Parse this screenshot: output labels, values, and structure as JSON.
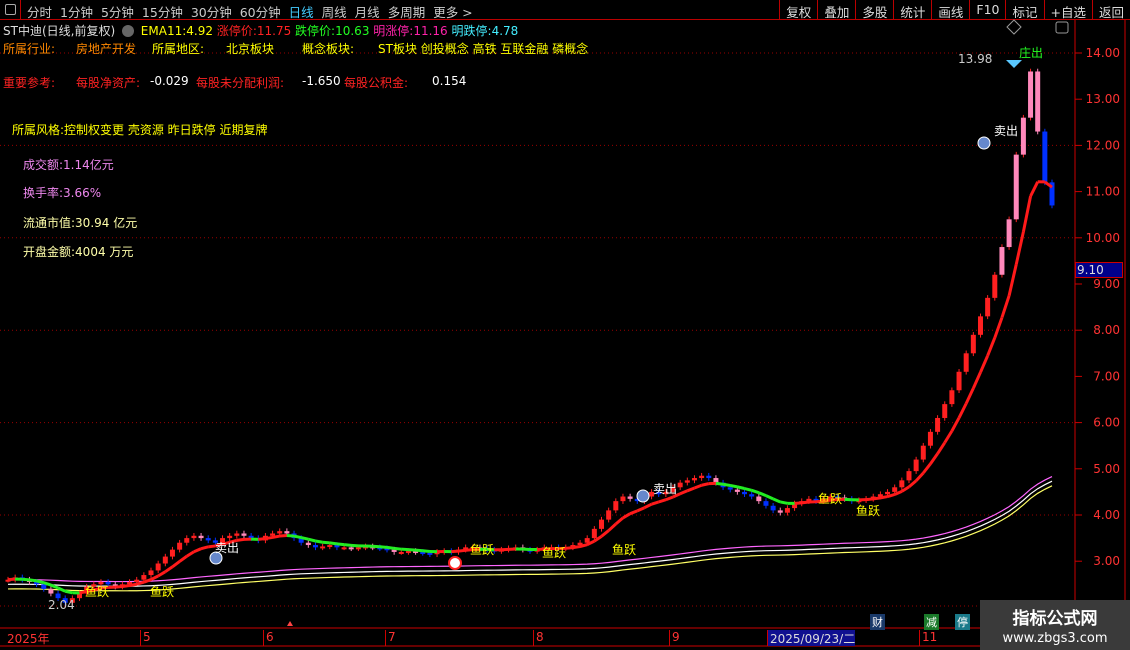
{
  "toolbar": {
    "timeframes": [
      "分时",
      "1分钟",
      "5分钟",
      "15分钟",
      "30分钟",
      "60分钟",
      "日线",
      "周线",
      "月线",
      "多周期",
      "更多 >"
    ],
    "active": "日线",
    "right_buttons": [
      "复权",
      "叠加",
      "多股",
      "统计",
      "画线",
      "F10",
      "标记",
      "+自选",
      "返回"
    ]
  },
  "header": {
    "title": "ST中迪(日线,前复权)",
    "ema_label": "EMA11:",
    "ema_value": "4.92",
    "limit_up_label": "涨停价:",
    "limit_up": "11.75",
    "limit_down_label": "跌停价:",
    "limit_down": "10.63",
    "next_up_label": "明涨停:",
    "next_up": "11.16",
    "next_down_label": "明跌停:",
    "next_down": "4.78"
  },
  "info": {
    "industry_label": "所属行业:",
    "industry": "房地产开发",
    "region_label": "所属地区:",
    "region": "北京板块",
    "concept_label": "概念板块:",
    "concepts": "ST板块 创投概念 高铁 互联金融 磷概念",
    "ref_label": "重要参考:",
    "nav_label": "每股净资产:",
    "nav": "-0.029",
    "undist_label": "每股未分配利润:",
    "undist": "-1.650",
    "reserve_label": "每股公积金:",
    "reserve": "0.154",
    "style": "所属风格:控制权变更 壳资源 昨日跌停 近期复牌",
    "turnover_amount": "成交额:1.14亿元",
    "turnover_rate": "换手率:3.66%",
    "float_cap": "流通市值:30.94 亿元",
    "open_amount": "开盘金额:4004 万元"
  },
  "annotations": {
    "high": "13.98",
    "low": "2.04",
    "sell": "卖出",
    "dump": "庄出",
    "leap": "鱼跃",
    "current_price": "9.10"
  },
  "badges": [
    "财",
    "减",
    "停"
  ],
  "x_axis": [
    "2025年",
    "5",
    "6",
    "7",
    "8",
    "9",
    "2025/09/23/二",
    "11"
  ],
  "watermark": {
    "name": "指标公式网",
    "url": "www.zbgs3.com"
  },
  "colors": {
    "up": "#ff2020",
    "down": "#0030ff",
    "ema": "#ff1a1a",
    "grid": "#b00000",
    "axis_text": "#ff3030"
  },
  "chart_data": {
    "type": "candlestick",
    "y_ticks": [
      "14.00",
      "13.00",
      "12.00",
      "11.00",
      "10.00",
      "9.00",
      "8.00",
      "7.00",
      "6.00",
      "5.00",
      "4.00",
      "3.00"
    ],
    "ylim": [
      2,
      14.2
    ],
    "close": [
      2.6,
      2.65,
      2.6,
      2.55,
      2.5,
      2.4,
      2.3,
      2.2,
      2.1,
      2.2,
      2.3,
      2.45,
      2.5,
      2.55,
      2.5,
      2.45,
      2.5,
      2.55,
      2.6,
      2.7,
      2.8,
      2.95,
      3.1,
      3.25,
      3.4,
      3.5,
      3.55,
      3.5,
      3.45,
      3.4,
      3.5,
      3.55,
      3.6,
      3.55,
      3.5,
      3.45,
      3.55,
      3.6,
      3.65,
      3.6,
      3.5,
      3.4,
      3.35,
      3.3,
      3.32,
      3.35,
      3.3,
      3.3,
      3.28,
      3.3,
      3.32,
      3.3,
      3.28,
      3.25,
      3.2,
      3.2,
      3.22,
      3.2,
      3.18,
      3.15,
      3.2,
      3.22,
      3.2,
      3.25,
      3.3,
      3.3,
      3.28,
      3.25,
      3.22,
      3.25,
      3.28,
      3.3,
      3.25,
      3.22,
      3.25,
      3.3,
      3.3,
      3.28,
      3.3,
      3.35,
      3.4,
      3.5,
      3.7,
      3.9,
      4.1,
      4.3,
      4.4,
      4.35,
      4.3,
      4.4,
      4.5,
      4.45,
      4.5,
      4.6,
      4.7,
      4.75,
      4.8,
      4.85,
      4.8,
      4.7,
      4.6,
      4.55,
      4.5,
      4.45,
      4.4,
      4.3,
      4.2,
      4.1,
      4.05,
      4.15,
      4.25,
      4.3,
      4.35,
      4.3,
      4.35,
      4.4,
      4.38,
      4.35,
      4.3,
      4.32,
      4.35,
      4.4,
      4.45,
      4.5,
      4.6,
      4.75,
      4.95,
      5.2,
      5.5,
      5.8,
      6.1,
      6.4,
      6.7,
      7.1,
      7.5,
      7.9,
      8.3,
      8.7,
      9.2,
      9.8,
      10.4,
      11.8,
      12.6,
      13.6,
      12.3,
      11.2,
      10.7
    ]
  }
}
